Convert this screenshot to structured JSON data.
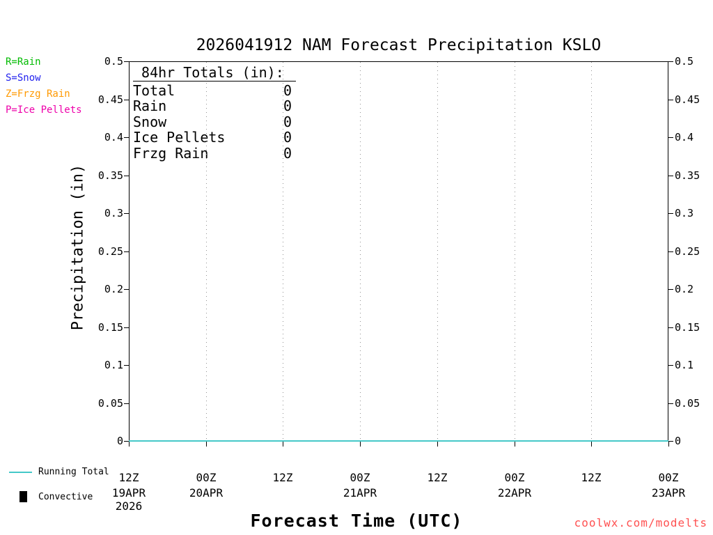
{
  "title": "2026041912 NAM Forecast Precipitation KSLO",
  "legend": {
    "items": [
      {
        "label": "R=Rain",
        "color": "#00bb00"
      },
      {
        "label": "S=Snow",
        "color": "#2222ee"
      },
      {
        "label": "Z=Frzg Rain",
        "color": "#ff9900"
      },
      {
        "label": "P=Ice Pellets",
        "color": "#ee00aa"
      }
    ]
  },
  "totals_box": {
    "header": " 84hr Totals (in):",
    "rows": [
      {
        "label": "Total",
        "value": "0"
      },
      {
        "label": "Rain",
        "value": "0"
      },
      {
        "label": "Snow",
        "value": "0"
      },
      {
        "label": "Ice Pellets",
        "value": "0"
      },
      {
        "label": "Frzg Rain",
        "value": "0"
      }
    ]
  },
  "bottom_legend": [
    {
      "label": "Running Total",
      "swatch": "line",
      "color": "#44c8c8"
    },
    {
      "label": "Convective",
      "swatch": "square",
      "color": "#000000"
    }
  ],
  "watermark": "coolwx.com/modelts",
  "colors": {
    "watermark": "#ff5050",
    "gridline": "#909090",
    "axis": "#000000"
  },
  "chart_data": {
    "type": "line",
    "title": "2026041912 NAM Forecast Precipitation KSLO",
    "xlabel": "Forecast Time (UTC)",
    "ylabel": "Precipitation (in)",
    "ylim": [
      0,
      0.5
    ],
    "ytick_step": 0.05,
    "grid": "vertical-dotted",
    "legend_position": "top-left-outside",
    "x_ticks": [
      "12Z",
      "00Z",
      "12Z",
      "00Z",
      "12Z",
      "00Z",
      "12Z",
      "00Z"
    ],
    "x_dates": [
      {
        "tick_index": 0,
        "label": "19APR",
        "sublabel": "2026"
      },
      {
        "tick_index": 1,
        "label": "20APR"
      },
      {
        "tick_index": 3,
        "label": "21APR"
      },
      {
        "tick_index": 5,
        "label": "22APR"
      },
      {
        "tick_index": 7,
        "label": "23APR"
      }
    ],
    "series": [
      {
        "name": "Running Total",
        "color": "#44c8c8",
        "values": [
          0,
          0,
          0,
          0,
          0,
          0,
          0,
          0
        ]
      }
    ]
  }
}
